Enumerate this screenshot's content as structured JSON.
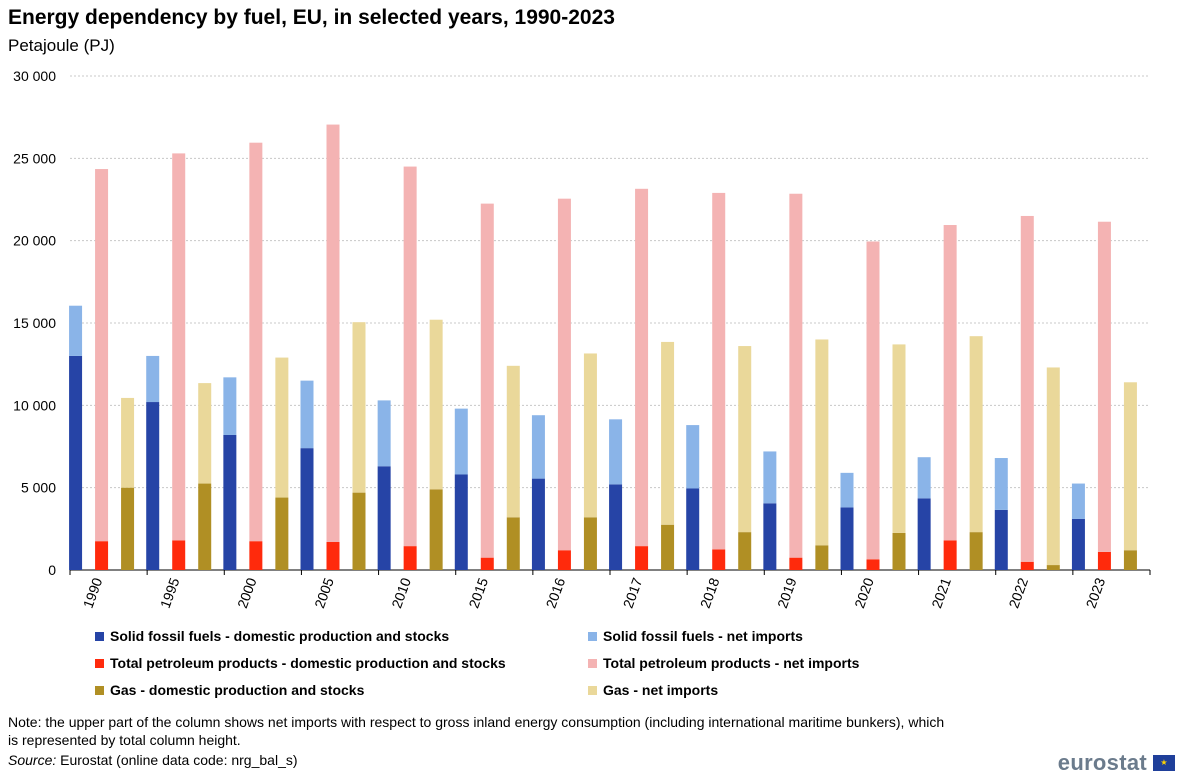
{
  "title": "Energy dependency by fuel, EU, in selected years, 1990-2023",
  "subtitle": "Petajoule (PJ)",
  "chart_data": {
    "type": "bar",
    "stacked_groups": true,
    "categories": [
      "1990",
      "1995",
      "2000",
      "2005",
      "2010",
      "2015",
      "2016",
      "2017",
      "2018",
      "2019",
      "2020",
      "2021",
      "2022",
      "2023"
    ],
    "ylim": [
      0,
      30000
    ],
    "yticks": [
      0,
      5000,
      10000,
      15000,
      20000,
      25000,
      30000
    ],
    "ytick_labels": [
      "0",
      "5 000",
      "10 000",
      "15 000",
      "20 000",
      "25 000",
      "30 000"
    ],
    "grid": true,
    "groups": [
      {
        "name": "Solid fossil fuels",
        "domestic": {
          "name": "Solid fossil fuels - domestic production and stocks",
          "color": "#2644a6",
          "values": [
            13000,
            10200,
            8200,
            7400,
            6300,
            5800,
            5550,
            5200,
            4950,
            4050,
            3800,
            4350,
            3650,
            3100
          ]
        },
        "imports": {
          "name": "Solid fossil fuels - net imports",
          "color": "#8ab4e8",
          "values": [
            3050,
            2800,
            3500,
            4100,
            4000,
            4000,
            3850,
            3950,
            3850,
            3150,
            2100,
            2500,
            3150,
            2150
          ]
        }
      },
      {
        "name": "Total petroleum products",
        "domestic": {
          "name": "Total petroleum products - domestic production and stocks",
          "color": "#ff2a0c",
          "values": [
            1750,
            1800,
            1750,
            1700,
            1450,
            750,
            1200,
            1450,
            1250,
            750,
            650,
            1800,
            500,
            1100
          ]
        },
        "imports": {
          "name": "Total petroleum products - net imports",
          "color": "#f4b3b3",
          "values": [
            22600,
            23500,
            24200,
            25350,
            23050,
            21500,
            21350,
            21700,
            21650,
            22100,
            19300,
            19150,
            21000,
            20050
          ]
        }
      },
      {
        "name": "Gas",
        "domestic": {
          "name": "Gas  - domestic production and stocks",
          "color": "#b08f24",
          "values": [
            5000,
            5250,
            4400,
            4700,
            4900,
            3200,
            3200,
            2750,
            2300,
            1500,
            2250,
            2300,
            300,
            1200
          ]
        },
        "imports": {
          "name": "Gas - net imports",
          "color": "#ead89a",
          "values": [
            5450,
            6100,
            8500,
            10350,
            10300,
            9200,
            9950,
            11100,
            11300,
            12500,
            11450,
            11900,
            12000,
            10200
          ]
        }
      }
    ]
  },
  "legend": {
    "items": [
      {
        "label": "Solid fossil fuels - domestic production and stocks",
        "color": "#2644a6"
      },
      {
        "label": "Solid fossil fuels - net imports",
        "color": "#8ab4e8"
      },
      {
        "label": "Total petroleum products - domestic production and stocks",
        "color": "#ff2a0c"
      },
      {
        "label": "Total petroleum products - net imports",
        "color": "#f4b3b3"
      },
      {
        "label": "Gas  - domestic production and stocks",
        "color": "#b08f24"
      },
      {
        "label": "Gas - net imports",
        "color": "#ead89a"
      }
    ]
  },
  "note": "Note: the upper part of the column shows net imports with respect to gross inland energy consumption (including international maritime bunkers), which is represented by total column height.",
  "source": {
    "label": "Source:",
    "text": " Eurostat (online data code: nrg_bal_s)"
  },
  "logo": {
    "text": "eurostat",
    "flag_icon": "eu-flag-icon"
  }
}
